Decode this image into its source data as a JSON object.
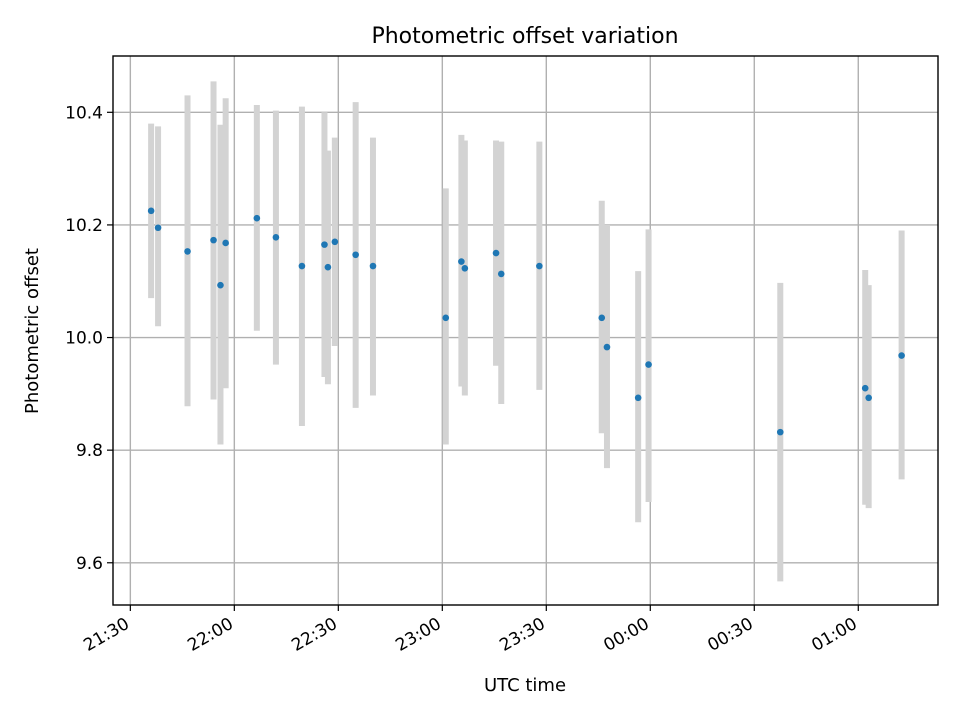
{
  "chart_data": {
    "type": "scatter",
    "title": "Photometric offset variation",
    "xlabel": "UTC time",
    "ylabel": "Photometric offset",
    "x_ticks": [
      "21:30",
      "22:00",
      "22:30",
      "23:00",
      "23:30",
      "00:00",
      "00:30",
      "01:00"
    ],
    "x_tick_minutes": [
      0,
      30,
      60,
      90,
      120,
      150,
      180,
      210
    ],
    "xlim_minutes": [
      -5,
      233
    ],
    "y_ticks": [
      "9.6",
      "9.8",
      "10.0",
      "10.2",
      "10.4"
    ],
    "y_tick_values": [
      9.6,
      9.8,
      10.0,
      10.2,
      10.4
    ],
    "ylim": [
      9.525,
      10.5
    ],
    "grid": true,
    "marker_color": "#1f77b4",
    "errorbar_color": "#d3d3d3",
    "series": [
      {
        "points": [
          {
            "time": "21:36",
            "t": 6.0,
            "y": 10.225,
            "lo": 10.07,
            "hi": 10.38
          },
          {
            "time": "21:38",
            "t": 8.0,
            "y": 10.195,
            "lo": 10.02,
            "hi": 10.375
          },
          {
            "time": "21:46",
            "t": 16.5,
            "y": 10.153,
            "lo": 9.878,
            "hi": 10.43
          },
          {
            "time": "21:54",
            "t": 24.0,
            "y": 10.173,
            "lo": 9.89,
            "hi": 10.455
          },
          {
            "time": "21:56",
            "t": 26.0,
            "y": 10.093,
            "lo": 9.81,
            "hi": 10.378
          },
          {
            "time": "21:57",
            "t": 27.5,
            "y": 10.168,
            "lo": 9.91,
            "hi": 10.425
          },
          {
            "time": "22:07",
            "t": 36.5,
            "y": 10.212,
            "lo": 10.012,
            "hi": 10.413
          },
          {
            "time": "22:12",
            "t": 42.0,
            "y": 10.178,
            "lo": 9.952,
            "hi": 10.403
          },
          {
            "time": "22:20",
            "t": 49.5,
            "y": 10.127,
            "lo": 9.843,
            "hi": 10.41
          },
          {
            "time": "22:26",
            "t": 56.0,
            "y": 10.165,
            "lo": 9.93,
            "hi": 10.4
          },
          {
            "time": "22:27",
            "t": 57.0,
            "y": 10.125,
            "lo": 9.917,
            "hi": 10.332
          },
          {
            "time": "22:29",
            "t": 59.0,
            "y": 10.17,
            "lo": 9.985,
            "hi": 10.355
          },
          {
            "time": "22:35",
            "t": 65.0,
            "y": 10.147,
            "lo": 9.875,
            "hi": 10.418
          },
          {
            "time": "22:40",
            "t": 70.0,
            "y": 10.127,
            "lo": 9.897,
            "hi": 10.355
          },
          {
            "time": "23:01",
            "t": 91.0,
            "y": 10.035,
            "lo": 9.81,
            "hi": 10.265
          },
          {
            "time": "23:06",
            "t": 95.5,
            "y": 10.135,
            "lo": 9.913,
            "hi": 10.36
          },
          {
            "time": "23:06",
            "t": 96.5,
            "y": 10.123,
            "lo": 9.897,
            "hi": 10.35
          },
          {
            "time": "23:16",
            "t": 105.5,
            "y": 10.15,
            "lo": 9.95,
            "hi": 10.35
          },
          {
            "time": "23:17",
            "t": 107.0,
            "y": 10.113,
            "lo": 9.882,
            "hi": 10.348
          },
          {
            "time": "23:28",
            "t": 118.0,
            "y": 10.127,
            "lo": 9.907,
            "hi": 10.348
          },
          {
            "time": "23:46",
            "t": 136.0,
            "y": 10.035,
            "lo": 9.83,
            "hi": 10.243
          },
          {
            "time": "23:47",
            "t": 137.5,
            "y": 9.983,
            "lo": 9.768,
            "hi": 10.2
          },
          {
            "time": "23:57",
            "t": 146.5,
            "y": 9.893,
            "lo": 9.672,
            "hi": 10.118
          },
          {
            "time": "23:59",
            "t": 149.5,
            "y": 9.952,
            "lo": 9.708,
            "hi": 10.192
          },
          {
            "time": "00:37",
            "t": 187.5,
            "y": 9.832,
            "lo": 9.567,
            "hi": 10.097
          },
          {
            "time": "01:03",
            "t": 212.0,
            "y": 9.91,
            "lo": 9.703,
            "hi": 10.12
          },
          {
            "time": "01:03",
            "t": 213.0,
            "y": 9.893,
            "lo": 9.697,
            "hi": 10.093
          },
          {
            "time": "01:13",
            "t": 222.5,
            "y": 9.968,
            "lo": 9.748,
            "hi": 10.19
          }
        ]
      }
    ]
  }
}
